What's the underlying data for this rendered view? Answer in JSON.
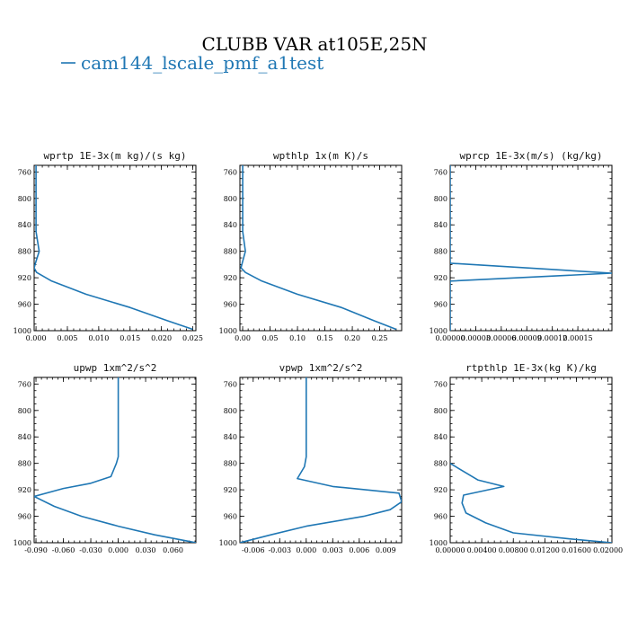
{
  "figure": {
    "title": "CLUBB VAR at105E,25N",
    "legend_label": "cam144_lscale_pmf_a1test",
    "line_color": "#1f77b4"
  },
  "chart_data": [
    {
      "type": "line",
      "title": "wprtp  1E-3x(m kg)/(s kg)",
      "xlim": [
        -0.0003,
        0.0255
      ],
      "ylim": [
        1000,
        750
      ],
      "xticks": [
        0.0,
        0.005,
        0.01,
        0.015,
        0.02,
        0.025
      ],
      "xtick_labels": [
        "0.000",
        "0.005",
        "0.010",
        "0.015",
        "0.020",
        "0.025"
      ],
      "yticks": [
        760,
        800,
        840,
        880,
        920,
        960,
        1000
      ],
      "series": [
        {
          "x": [
            0.0,
            0.0,
            0.0,
            0.0005,
            0.0,
            -0.0003,
            0.0001,
            0.0025,
            0.008,
            0.015,
            0.021,
            0.025
          ],
          "y": [
            750,
            800,
            850,
            880,
            895,
            905,
            912,
            925,
            945,
            965,
            985,
            998
          ]
        }
      ]
    },
    {
      "type": "line",
      "title": "wpthlp  1x(m K)/s",
      "xlim": [
        -0.005,
        0.29
      ],
      "ylim": [
        1000,
        750
      ],
      "xticks": [
        0.0,
        0.05,
        0.1,
        0.15,
        0.2,
        0.25
      ],
      "xtick_labels": [
        "0.00",
        "0.05",
        "0.10",
        "0.15",
        "0.20",
        "0.25"
      ],
      "yticks": [
        760,
        800,
        840,
        880,
        920,
        960,
        1000
      ],
      "series": [
        {
          "x": [
            0.0,
            0.0,
            0.0,
            0.005,
            0.0,
            -0.003,
            0.005,
            0.035,
            0.1,
            0.18,
            0.24,
            0.28
          ],
          "y": [
            750,
            800,
            850,
            880,
            895,
            905,
            912,
            925,
            945,
            965,
            985,
            998
          ]
        }
      ]
    },
    {
      "type": "line",
      "title": "wprcp  1E-3x(m/s) (kg/kg)",
      "xlim": [
        0.0,
        0.00019
      ],
      "ylim": [
        1000,
        750
      ],
      "xticks": [
        0.0,
        3e-05,
        6e-05,
        9e-05,
        0.00012,
        0.00015
      ],
      "xtick_labels": [
        "0.00000",
        "0.00003",
        "0.00006",
        "0.00009",
        "0.00012",
        "0.00015"
      ],
      "yticks": [
        760,
        800,
        840,
        880,
        920,
        960,
        1000
      ],
      "series": [
        {
          "x": [
            0.0,
            0.0,
            0.0,
            0.0,
            0.0,
            0.00019,
            0.0,
            0.0,
            0.0
          ],
          "y": [
            750,
            800,
            850,
            880,
            898,
            913,
            925,
            960,
            1000
          ]
        }
      ]
    },
    {
      "type": "line",
      "title": "upwp  1xm^2/s^2",
      "xlim": [
        -0.092,
        0.085
      ],
      "ylim": [
        1000,
        750
      ],
      "xticks": [
        -0.09,
        -0.06,
        -0.03,
        0.0,
        0.03,
        0.06
      ],
      "xtick_labels": [
        "-0.090",
        "-0.060",
        "-0.030",
        "0.000",
        "0.030",
        "0.060"
      ],
      "yticks": [
        760,
        800,
        840,
        880,
        920,
        960,
        1000
      ],
      "series": [
        {
          "x": [
            0.0,
            0.0,
            0.0,
            0.0,
            -0.002,
            -0.008,
            -0.03,
            -0.06,
            -0.092,
            -0.07,
            -0.04,
            0.0,
            0.04,
            0.085
          ],
          "y": [
            750,
            800,
            850,
            870,
            880,
            900,
            910,
            918,
            930,
            945,
            960,
            975,
            988,
            1000
          ]
        }
      ]
    },
    {
      "type": "line",
      "title": "vpwp  1xm^2/s^2",
      "xlim": [
        -0.0075,
        0.0108
      ],
      "ylim": [
        1000,
        750
      ],
      "xticks": [
        -0.006,
        -0.003,
        0.0,
        0.003,
        0.006,
        0.009
      ],
      "xtick_labels": [
        "-0.006",
        "-0.003",
        "0.000",
        "0.003",
        "0.006",
        "0.009"
      ],
      "yticks": [
        760,
        800,
        840,
        880,
        920,
        960,
        1000
      ],
      "series": [
        {
          "x": [
            0.0,
            0.0,
            0.0,
            0.0,
            -0.0002,
            -0.001,
            0.003,
            0.0105,
            0.0108,
            0.0095,
            0.0065,
            0.0,
            -0.004,
            -0.0075
          ],
          "y": [
            750,
            800,
            850,
            870,
            885,
            903,
            915,
            925,
            938,
            950,
            960,
            975,
            988,
            1000
          ]
        }
      ]
    },
    {
      "type": "line",
      "title": "rtpthlp  1E-3x(kg K)/kg",
      "xlim": [
        0.0,
        0.0205
      ],
      "ylim": [
        1000,
        750
      ],
      "xticks": [
        0.0,
        0.004,
        0.008,
        0.012,
        0.016,
        0.02
      ],
      "xtick_labels": [
        "0.00000",
        "0.00400",
        "0.00800",
        "0.01200",
        "0.01600",
        "0.02000"
      ],
      "yticks": [
        760,
        800,
        840,
        880,
        920,
        960,
        1000
      ],
      "series": [
        {
          "x": [
            0.0,
            0.0035,
            0.0068,
            0.0017,
            0.0015,
            0.002,
            0.0045,
            0.008,
            0.015,
            0.0205
          ],
          "y": [
            880,
            905,
            915,
            928,
            940,
            955,
            970,
            985,
            994,
            1000
          ]
        }
      ]
    }
  ]
}
